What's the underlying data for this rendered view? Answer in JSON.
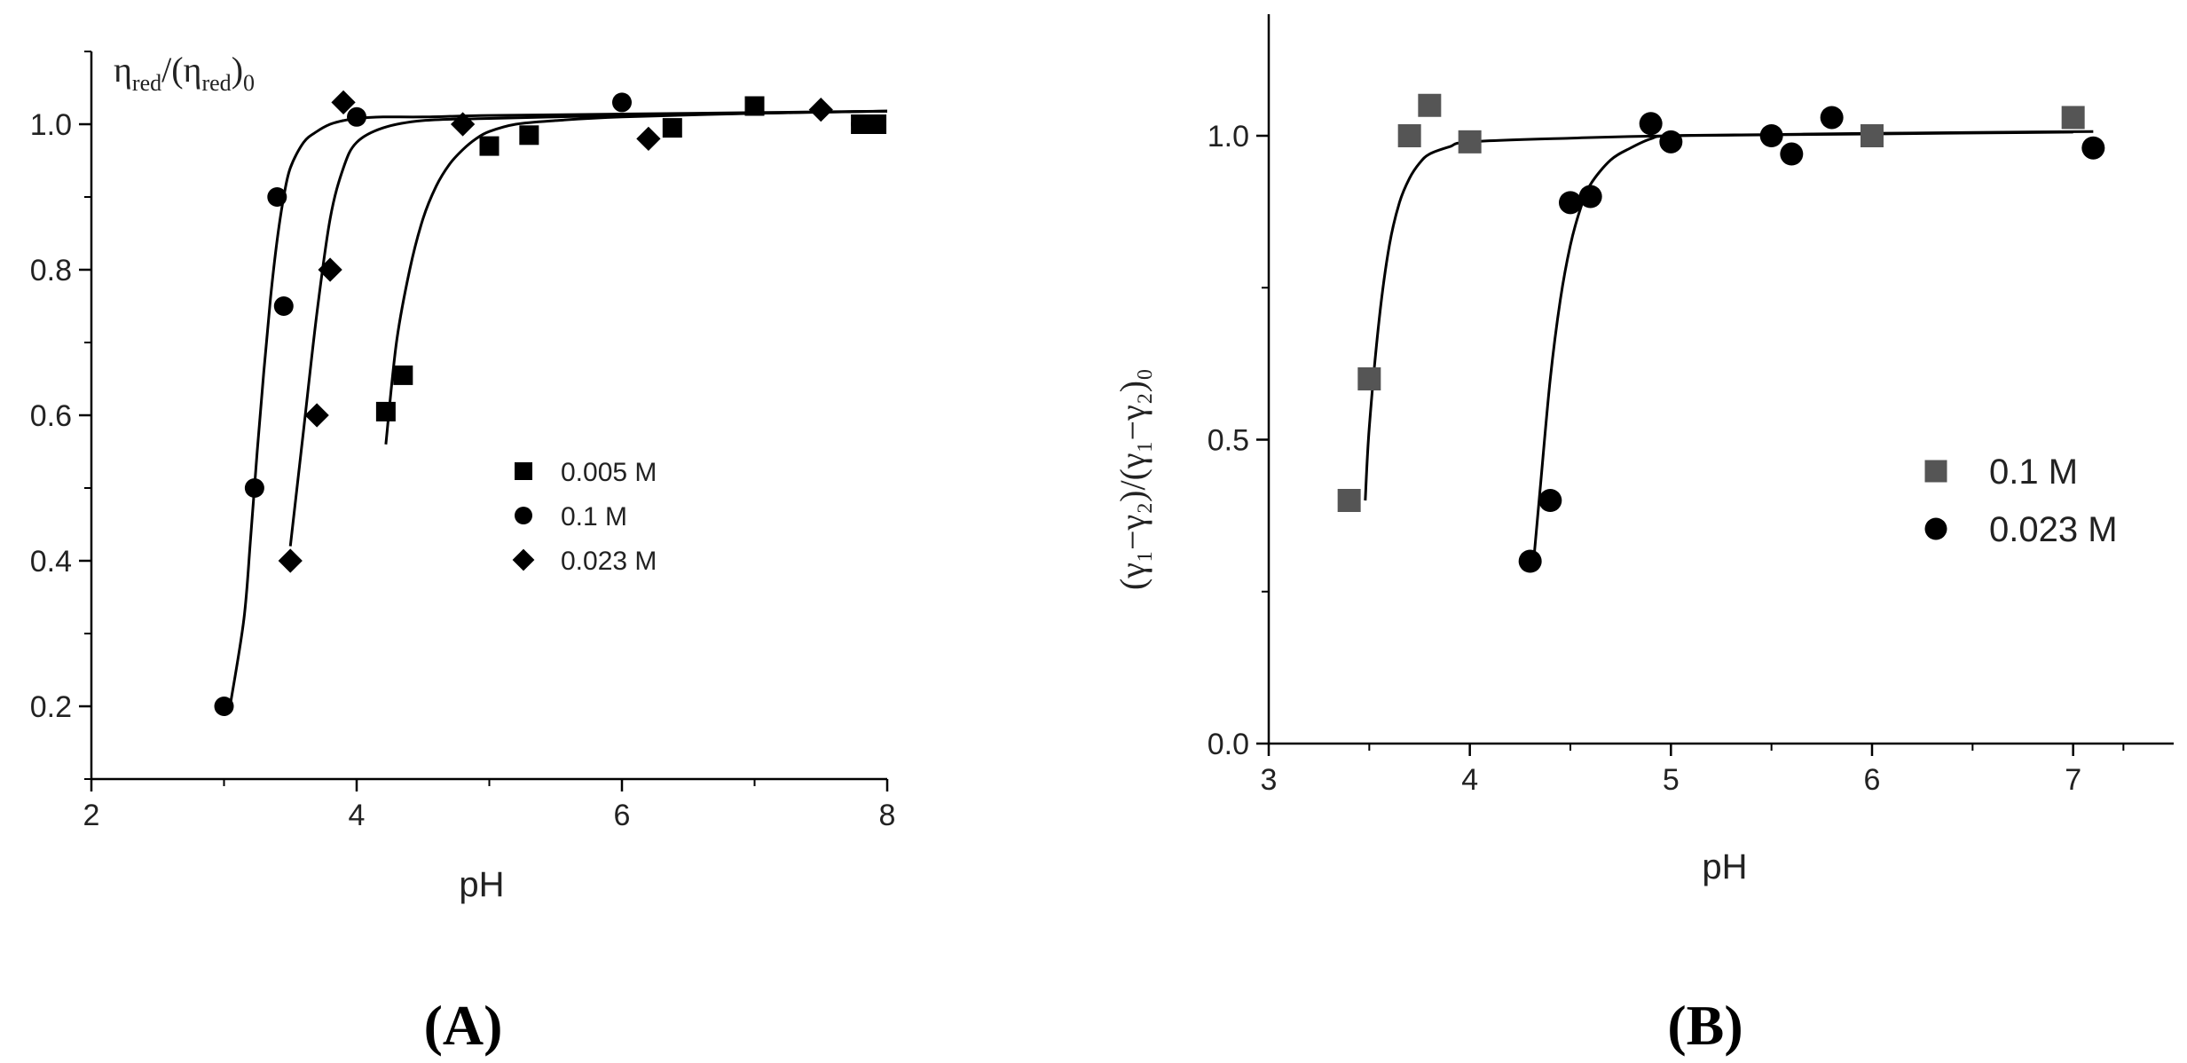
{
  "chart_data": [
    {
      "type": "scatter",
      "panel_label": "(A)",
      "xlabel": "pH",
      "ylabel_main": "η",
      "ylabel_sub1": "red",
      "ylabel_mid": "/(η",
      "ylabel_sub2": "red",
      "ylabel_close": ")",
      "ylabel_sub3": "0",
      "xlim": [
        2,
        8
      ],
      "ylim": [
        0.1,
        1.1
      ],
      "xticks": [
        2,
        4,
        6,
        8
      ],
      "xtick_labels": [
        "2",
        "4",
        "6",
        "8"
      ],
      "yticks": [
        0.2,
        0.4,
        0.6,
        0.8,
        1.0
      ],
      "ytick_labels": [
        "0.2",
        "0.4",
        "0.6",
        "0.8",
        "1.0"
      ],
      "legend_position": "right-middle",
      "series": [
        {
          "name": "0.005 M",
          "marker": "square",
          "color": "#000000",
          "points": [
            [
              4.22,
              0.605
            ],
            [
              4.35,
              0.655
            ],
            [
              5.0,
              0.97
            ],
            [
              5.3,
              0.985
            ],
            [
              6.38,
              0.995
            ],
            [
              7.0,
              1.025
            ],
            [
              7.8,
              1.0
            ],
            [
              7.92,
              1.0
            ]
          ]
        },
        {
          "name": "0.1 M",
          "marker": "circle",
          "color": "#000000",
          "points": [
            [
              3.0,
              0.2
            ],
            [
              3.23,
              0.5
            ],
            [
              3.4,
              0.9
            ],
            [
              3.45,
              0.75
            ],
            [
              4.0,
              1.01
            ],
            [
              6.0,
              1.03
            ],
            [
              7.8,
              1.0
            ]
          ]
        },
        {
          "name": "0.023 M",
          "marker": "diamond",
          "color": "#000000",
          "points": [
            [
              3.5,
              0.4
            ],
            [
              3.7,
              0.6
            ],
            [
              3.8,
              0.8
            ],
            [
              3.9,
              1.03
            ],
            [
              4.8,
              1.0
            ],
            [
              6.2,
              0.98
            ],
            [
              7.5,
              1.02
            ]
          ]
        }
      ],
      "fit_curves": [
        {
          "x": [
            3.05,
            3.15,
            3.2,
            3.25,
            3.3,
            3.35,
            3.4,
            3.45,
            3.5,
            3.6,
            3.7,
            3.8,
            3.9,
            4.0,
            4.2,
            4.5,
            5.0,
            6.0,
            7.0,
            8.0
          ],
          "y": [
            0.205,
            0.32,
            0.43,
            0.55,
            0.66,
            0.76,
            0.84,
            0.9,
            0.94,
            0.975,
            0.99,
            1.0,
            1.005,
            1.008,
            1.01,
            1.01,
            1.012,
            1.014,
            1.016,
            1.018
          ]
        },
        {
          "x": [
            3.5,
            3.6,
            3.7,
            3.8,
            3.9,
            4.0,
            4.2,
            4.5,
            5.0,
            6.0,
            7.0,
            8.0
          ],
          "y": [
            0.42,
            0.58,
            0.74,
            0.87,
            0.94,
            0.975,
            0.995,
            1.005,
            1.008,
            1.012,
            1.015,
            1.018
          ]
        },
        {
          "x": [
            4.22,
            4.3,
            4.4,
            4.5,
            4.6,
            4.7,
            4.8,
            4.9,
            5.0,
            5.2,
            5.5,
            6.0,
            7.0,
            8.0
          ],
          "y": [
            0.56,
            0.7,
            0.8,
            0.87,
            0.915,
            0.945,
            0.965,
            0.98,
            0.99,
            1.0,
            1.005,
            1.01,
            1.015,
            1.018
          ]
        }
      ]
    },
    {
      "type": "scatter",
      "panel_label": "(B)",
      "xlabel": "pH",
      "ylabel_text": "(γ₁−γ₂)/(γ₁−γ₂)₀",
      "xlim": [
        3,
        7.5
      ],
      "ylim": [
        0,
        1.2
      ],
      "xticks": [
        3,
        4,
        5,
        6,
        7
      ],
      "xtick_labels": [
        "3",
        "4",
        "5",
        "6",
        "7"
      ],
      "yticks": [
        0.0,
        0.5,
        1.0
      ],
      "ytick_labels": [
        "0.0",
        "0.5",
        "1.0"
      ],
      "legend_position": "right-middle",
      "series": [
        {
          "name": "0.1 M",
          "marker": "square",
          "color": "#555555",
          "points": [
            [
              3.4,
              0.4
            ],
            [
              3.5,
              0.6
            ],
            [
              3.7,
              1.0
            ],
            [
              3.8,
              1.05
            ],
            [
              4.0,
              0.99
            ],
            [
              6.0,
              1.0
            ],
            [
              7.0,
              1.03
            ]
          ]
        },
        {
          "name": "0.023 M",
          "marker": "circle",
          "color": "#000000",
          "points": [
            [
              4.3,
              0.3
            ],
            [
              4.4,
              0.4
            ],
            [
              4.5,
              0.89
            ],
            [
              4.6,
              0.9
            ],
            [
              4.9,
              1.02
            ],
            [
              5.0,
              0.99
            ],
            [
              5.5,
              1.0
            ],
            [
              5.6,
              0.97
            ],
            [
              5.8,
              1.03
            ],
            [
              7.1,
              0.98
            ]
          ]
        }
      ],
      "fit_curves": [
        {
          "x": [
            3.48,
            3.5,
            3.55,
            3.6,
            3.65,
            3.7,
            3.75,
            3.8,
            3.9,
            4.0,
            4.5,
            5.0,
            6.0,
            7.0
          ],
          "y": [
            0.4,
            0.52,
            0.7,
            0.82,
            0.89,
            0.93,
            0.955,
            0.97,
            0.982,
            0.99,
            0.996,
            1.0,
            1.003,
            1.006
          ]
        },
        {
          "x": [
            4.32,
            4.35,
            4.4,
            4.45,
            4.5,
            4.55,
            4.6,
            4.7,
            4.8,
            4.9,
            5.0,
            5.5,
            6.0,
            7.1
          ],
          "y": [
            0.31,
            0.42,
            0.6,
            0.73,
            0.82,
            0.88,
            0.92,
            0.96,
            0.98,
            0.995,
            1.0,
            1.002,
            1.004,
            1.007
          ]
        }
      ]
    }
  ]
}
